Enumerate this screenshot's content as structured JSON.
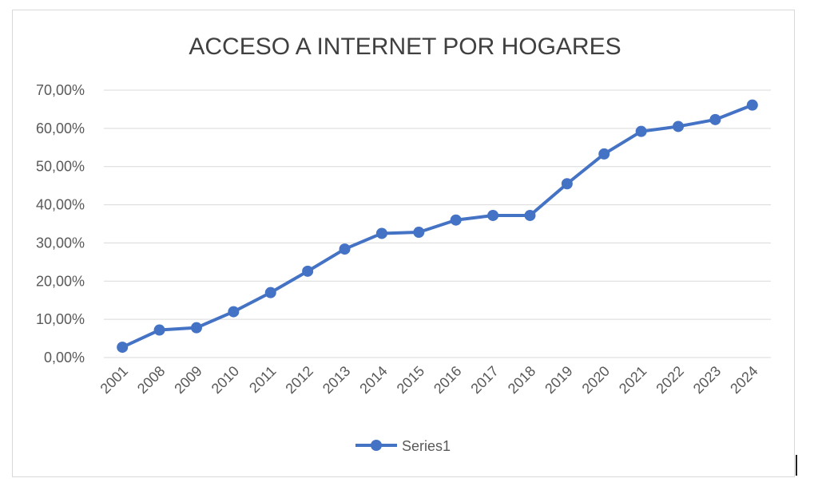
{
  "chart_data": {
    "type": "line",
    "title": "ACCESO A INTERNET POR HOGARES",
    "xlabel": "",
    "ylabel": "",
    "categories": [
      "2001",
      "2008",
      "2009",
      "2010",
      "2011",
      "2012",
      "2013",
      "2014",
      "2015",
      "2016",
      "2017",
      "2018",
      "2019",
      "2020",
      "2021",
      "2022",
      "2023",
      "2024"
    ],
    "series": [
      {
        "name": "Series1",
        "values": [
          2.7,
          7.2,
          7.8,
          12.0,
          17.0,
          22.6,
          28.4,
          32.5,
          32.8,
          36.0,
          37.2,
          37.2,
          45.5,
          53.3,
          59.2,
          60.5,
          62.3,
          66.1
        ]
      }
    ],
    "ylim": [
      0,
      70
    ],
    "yticks": [
      "0,00%",
      "10,00%",
      "20,00%",
      "30,00%",
      "40,00%",
      "50,00%",
      "60,00%",
      "70,00%"
    ],
    "grid": true,
    "legend": "bottom-center",
    "colors": {
      "line": "#4472c4",
      "grid": "#d9d9d9",
      "text": "#595959",
      "title": "#404040"
    }
  }
}
